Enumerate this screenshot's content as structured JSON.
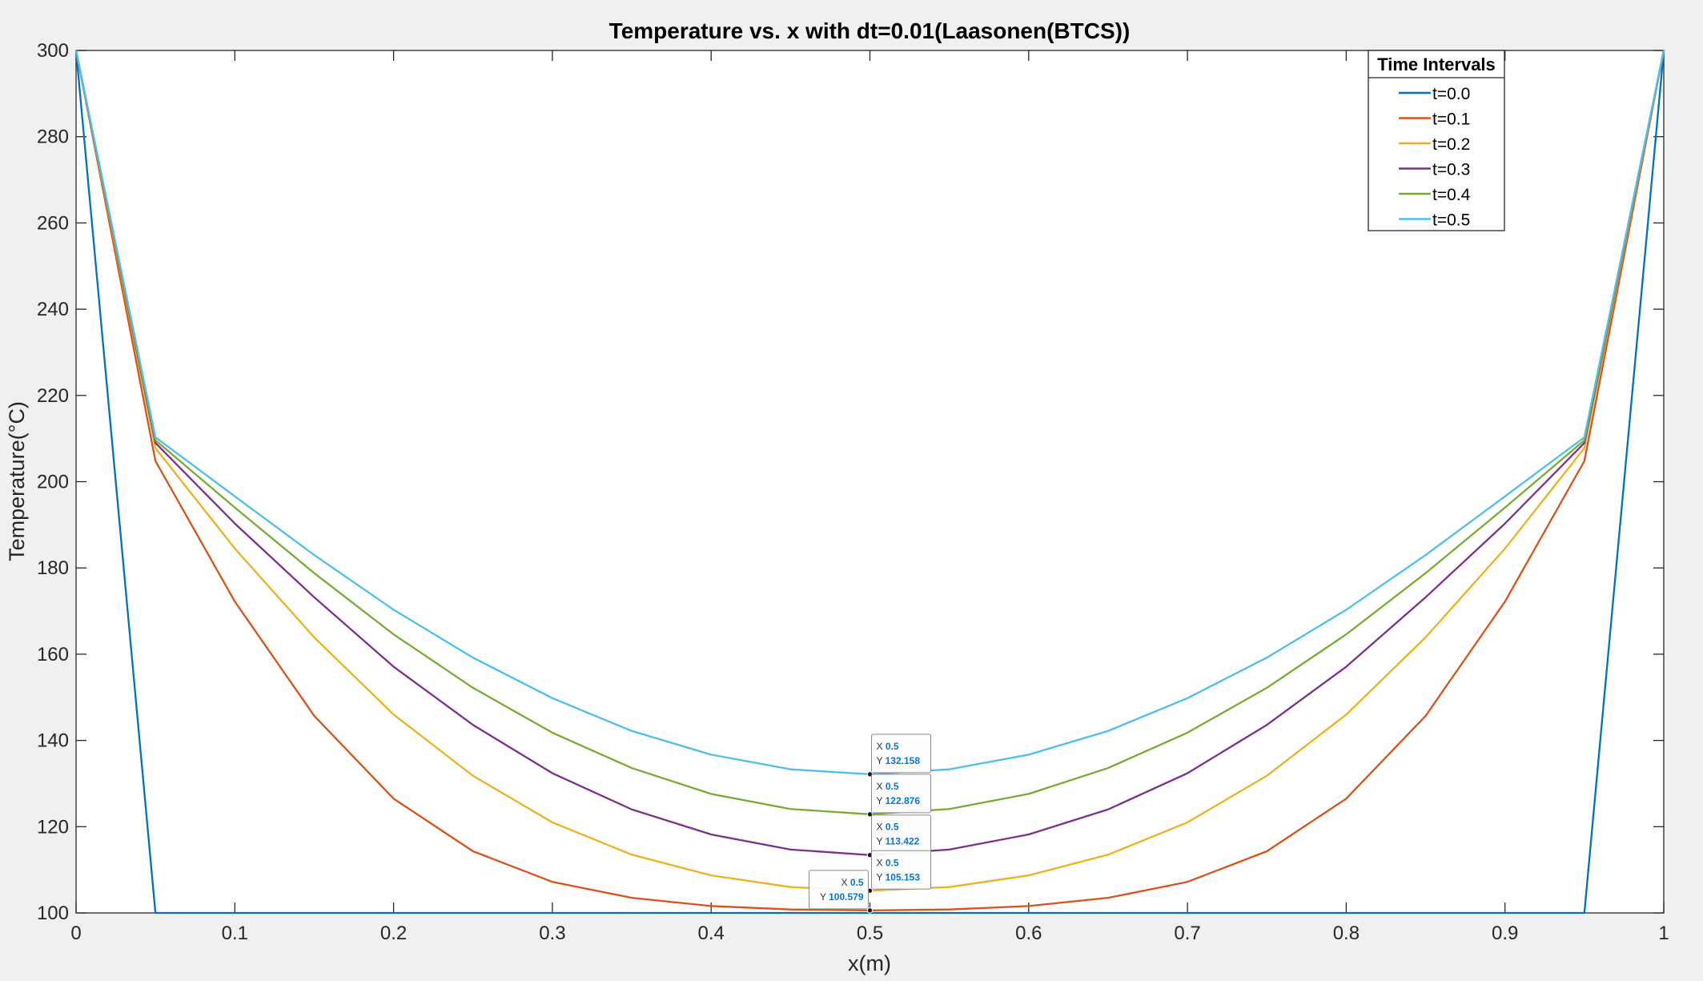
{
  "chart_data": {
    "type": "line",
    "title": "Temperature vs. x with dt=0.01(Laasonen(BTCS))",
    "xlabel": "x(m)",
    "ylabel": "Temperature(°C)",
    "xlim": [
      0,
      1
    ],
    "ylim": [
      100,
      300
    ],
    "xticks": [
      "0",
      "0.1",
      "0.2",
      "0.3",
      "0.4",
      "0.5",
      "0.6",
      "0.7",
      "0.8",
      "0.9",
      "1"
    ],
    "yticks": [
      "100",
      "120",
      "140",
      "160",
      "180",
      "200",
      "220",
      "240",
      "260",
      "280",
      "300"
    ],
    "grid": false,
    "legend": {
      "title": "Time Intervals",
      "location": "top-right"
    },
    "x": [
      0,
      0.05,
      0.1,
      0.15,
      0.2,
      0.25,
      0.3,
      0.35,
      0.4,
      0.45,
      0.5,
      0.55,
      0.6,
      0.65,
      0.7,
      0.75,
      0.8,
      0.85,
      0.9,
      0.95,
      1
    ],
    "series": [
      {
        "name": "t=0.0",
        "color": "#0072bd",
        "values": [
          300,
          100,
          100,
          100,
          100,
          100,
          100,
          100,
          100,
          100,
          100,
          100,
          100,
          100,
          100,
          100,
          100,
          100,
          100,
          100,
          300
        ]
      },
      {
        "name": "t=0.1",
        "color": "#d95319",
        "values": [
          300,
          204.8,
          172.2,
          145.7,
          126.5,
          114.3,
          107.2,
          103.5,
          101.6,
          100.8,
          100.579,
          100.8,
          101.6,
          103.5,
          107.2,
          114.3,
          126.5,
          145.7,
          172.2,
          204.8,
          300
        ]
      },
      {
        "name": "t=0.2",
        "color": "#edb120",
        "values": [
          300,
          207.8,
          184.5,
          163.9,
          146.0,
          131.8,
          121.0,
          113.5,
          108.7,
          106.0,
          105.153,
          106.0,
          108.7,
          113.5,
          121.0,
          131.8,
          146.0,
          163.9,
          184.5,
          207.8,
          300
        ]
      },
      {
        "name": "t=0.3",
        "color": "#7e2f8e",
        "values": [
          300,
          209.0,
          190.3,
          173.2,
          157.1,
          143.6,
          132.4,
          124.0,
          118.2,
          114.7,
          113.422,
          114.7,
          118.2,
          124.0,
          132.4,
          143.6,
          157.1,
          173.2,
          190.3,
          209.0,
          300
        ]
      },
      {
        "name": "t=0.4",
        "color": "#77ac30",
        "values": [
          300,
          209.6,
          194.0,
          178.8,
          164.6,
          152.2,
          141.8,
          133.6,
          127.6,
          124.1,
          122.876,
          124.1,
          127.6,
          133.6,
          141.8,
          152.2,
          164.6,
          178.8,
          194.0,
          209.6,
          300
        ]
      },
      {
        "name": "t=0.5",
        "color": "#4dbeee",
        "values": [
          300,
          210.3,
          196.6,
          183.0,
          170.3,
          159.2,
          149.8,
          142.2,
          136.7,
          133.3,
          132.158,
          133.3,
          136.7,
          142.2,
          149.8,
          159.2,
          170.3,
          183.0,
          196.6,
          210.3,
          300
        ]
      }
    ],
    "annotations": [
      {
        "series": "t=0.5",
        "x": 0.5,
        "y": 132.158,
        "x_label": "X",
        "y_label": "Y",
        "x_text": "0.5",
        "y_text": "132.158"
      },
      {
        "series": "t=0.4",
        "x": 0.5,
        "y": 122.876,
        "x_label": "X",
        "y_label": "Y",
        "x_text": "0.5",
        "y_text": "122.876"
      },
      {
        "series": "t=0.3",
        "x": 0.5,
        "y": 113.422,
        "x_label": "X",
        "y_label": "Y",
        "x_text": "0.5",
        "y_text": "113.422"
      },
      {
        "series": "t=0.2",
        "x": 0.5,
        "y": 105.153,
        "x_label": "X",
        "y_label": "Y",
        "x_text": "0.5",
        "y_text": "105.153"
      },
      {
        "series": "t=0.1",
        "x": 0.5,
        "y": 100.579,
        "x_label": "X",
        "y_label": "Y",
        "x_text": "0.5",
        "y_text": "100.579"
      }
    ]
  }
}
